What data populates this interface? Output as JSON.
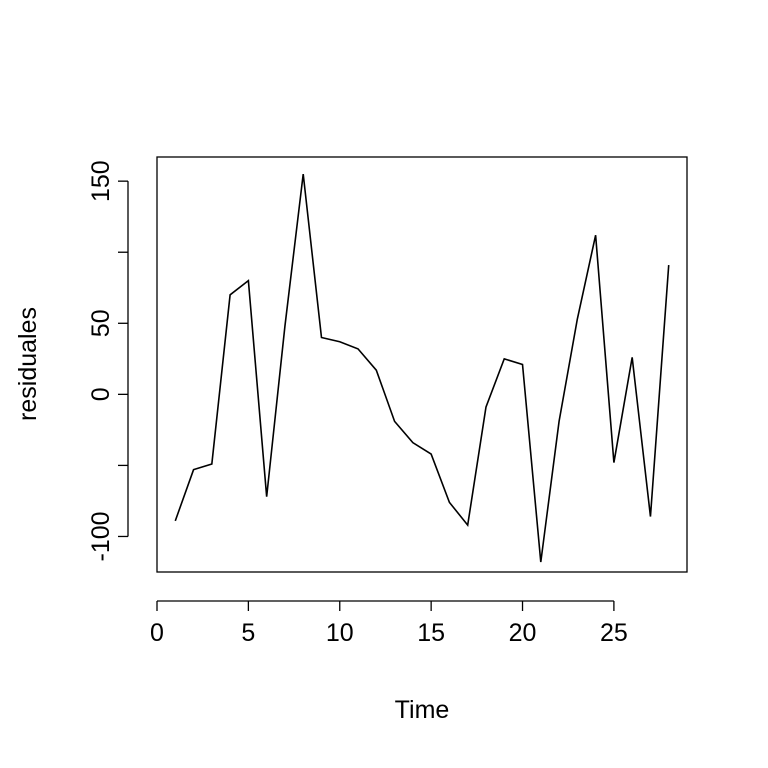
{
  "chart_data": {
    "type": "line",
    "title": "",
    "xlabel": "Time",
    "ylabel": "residuales",
    "xlim": [
      0,
      29
    ],
    "ylim": [
      -125,
      167
    ],
    "x_ticks": [
      0,
      5,
      10,
      15,
      20,
      25
    ],
    "x_tick_labels": [
      "0",
      "5",
      "10",
      "15",
      "20",
      "25"
    ],
    "y_ticks": [
      -100,
      -50,
      0,
      50,
      100,
      150
    ],
    "y_tick_labels": [
      "-100",
      "",
      "0",
      "50",
      "",
      "150"
    ],
    "grid": false,
    "series": [
      {
        "color": "#000000",
        "x": [
          1,
          2,
          3,
          4,
          5,
          6,
          7,
          8,
          9,
          10,
          11,
          12,
          13,
          14,
          15,
          16,
          17,
          18,
          19,
          20,
          21,
          22,
          23,
          24,
          25,
          26,
          27,
          28
        ],
        "values": [
          -89,
          -53,
          -49,
          70,
          80,
          -72,
          48,
          155,
          40,
          37,
          32,
          17,
          -19,
          -34,
          -42,
          -76,
          -92,
          -9,
          25,
          21,
          -118,
          -19,
          53,
          112,
          -48,
          26,
          -86,
          91
        ]
      }
    ]
  }
}
